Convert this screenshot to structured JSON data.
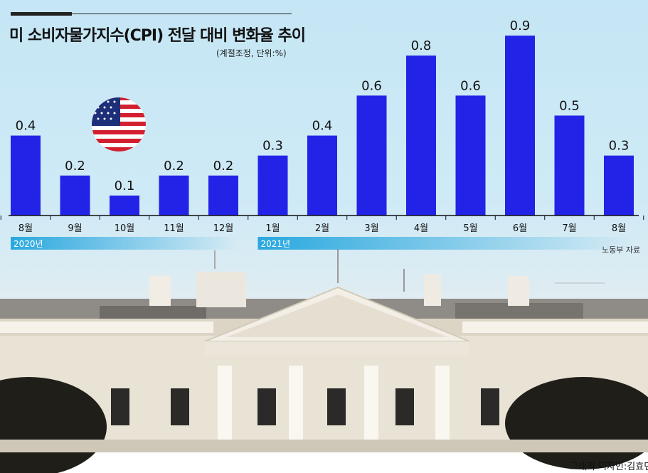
{
  "title": "미 소비자물가지수(CPI) 전달 대비 변화율 추이",
  "unit_note": "(계절조정, 단위:%)",
  "source": "노동부 자료",
  "credit": "그래픽 디자인:김효민",
  "colors": {
    "bar": "#2323e8",
    "axis": "#111111",
    "year_band": "#2aa8df"
  },
  "chart_data": {
    "type": "bar",
    "title": "미 소비자물가지수(CPI) 전달 대비 변화율 추이",
    "categories": [
      "8월",
      "9월",
      "10월",
      "11월",
      "12월",
      "1월",
      "2월",
      "3월",
      "4월",
      "5월",
      "6월",
      "7월",
      "8월"
    ],
    "values": [
      0.4,
      0.2,
      0.1,
      0.2,
      0.2,
      0.3,
      0.4,
      0.6,
      0.8,
      0.6,
      0.9,
      0.5,
      0.3
    ],
    "value_labels": [
      "0.4",
      "0.2",
      "0.1",
      "0.2",
      "0.2",
      "0.3",
      "0.4",
      "0.6",
      "0.8",
      "0.6",
      "0.9",
      "0.5",
      "0.3"
    ],
    "year_groups": [
      {
        "label": "2020년",
        "start": 0,
        "end": 4
      },
      {
        "label": "2021년",
        "start": 5,
        "end": 12
      }
    ],
    "ylim": [
      0,
      0.95
    ],
    "xlabel": "",
    "ylabel": "",
    "grid": false
  }
}
